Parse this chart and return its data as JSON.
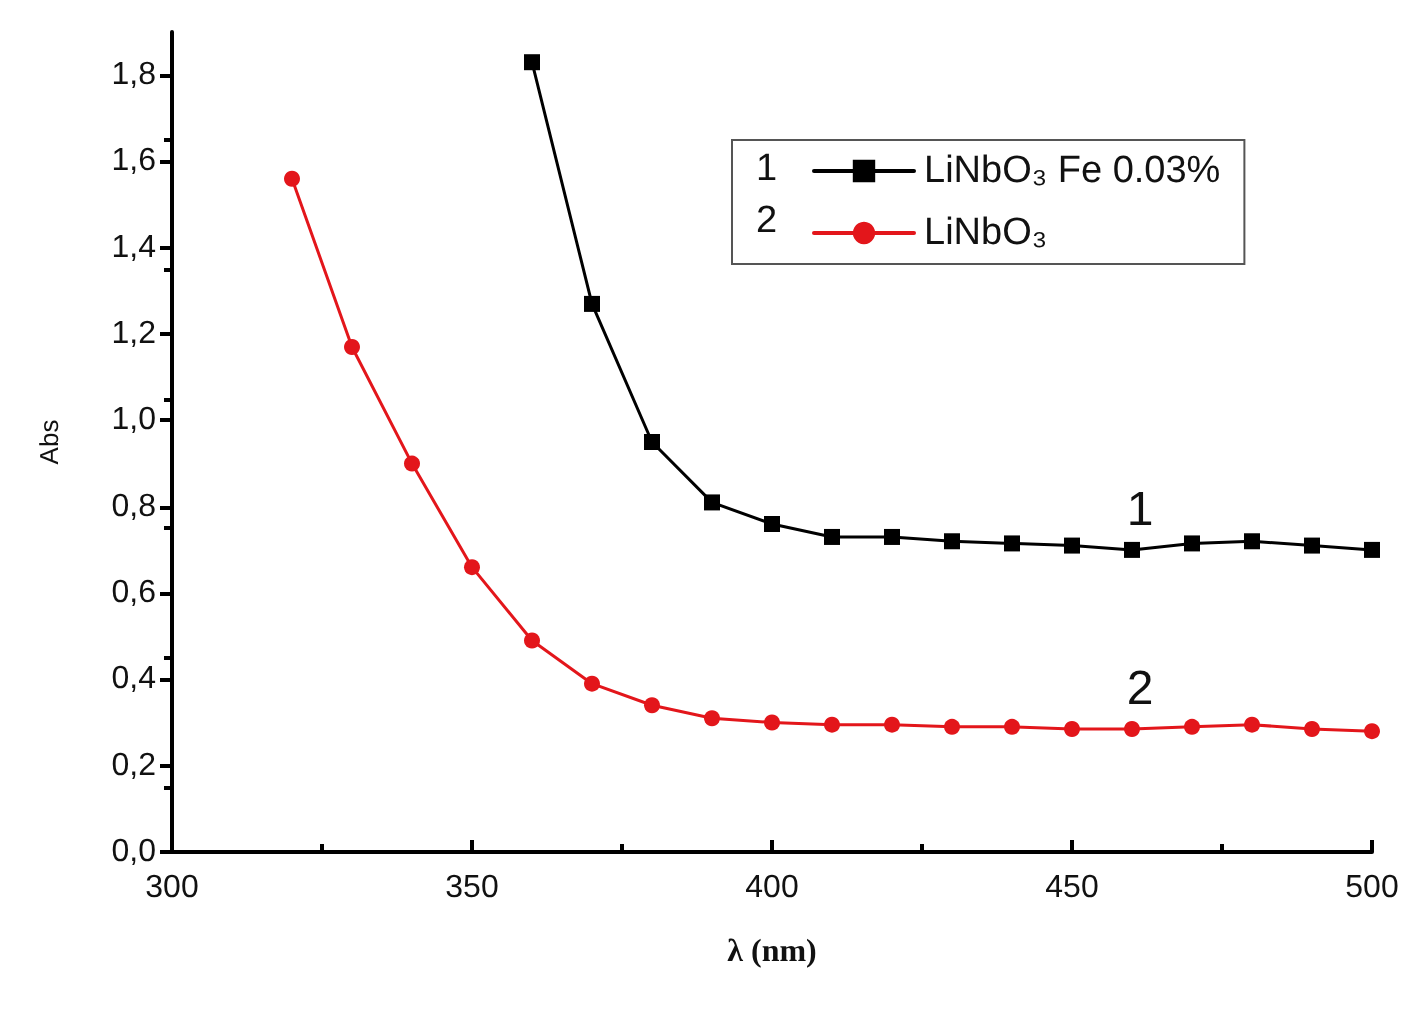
{
  "chart_data": {
    "type": "line",
    "xlabel": "λ (nm)",
    "ylabel": "Abs",
    "xlim": [
      300,
      500
    ],
    "xticks": [
      300,
      350,
      400,
      450,
      500
    ],
    "ylim": [
      0,
      1.9
    ],
    "yticks": [
      {
        "value": 0,
        "label": "0,0"
      },
      {
        "value": 0.2,
        "label": "0,2"
      },
      {
        "value": 0.4,
        "label": "0,4"
      },
      {
        "value": 0.6,
        "label": "0,6"
      },
      {
        "value": 0.8,
        "label": "0,8"
      },
      {
        "value": 1,
        "label": "1,0"
      },
      {
        "value": 1.2,
        "label": "1,2"
      },
      {
        "value": 1.4,
        "label": "1,4"
      },
      {
        "value": 1.6,
        "label": "1,6"
      },
      {
        "value": 1.8,
        "label": "1,8"
      }
    ],
    "series": [
      {
        "name": "LiNbO₃ Fe 0.03%",
        "color": "#000000",
        "marker": "square",
        "x": [
          360,
          370,
          380,
          390,
          400,
          410,
          420,
          430,
          440,
          450,
          460,
          470,
          480,
          490,
          500
        ],
        "values": [
          1.83,
          1.27,
          0.95,
          0.81,
          0.76,
          0.73,
          0.73,
          0.72,
          0.715,
          0.71,
          0.7,
          0.715,
          0.72,
          0.71,
          0.7
        ]
      },
      {
        "name": "LiNbO₃",
        "color": "#e3161b",
        "marker": "circle",
        "x": [
          320,
          330,
          340,
          350,
          360,
          370,
          380,
          390,
          400,
          410,
          420,
          430,
          440,
          450,
          460,
          470,
          480,
          490,
          500
        ],
        "values": [
          1.56,
          1.17,
          0.9,
          0.66,
          0.49,
          0.39,
          0.34,
          0.31,
          0.3,
          0.295,
          0.295,
          0.29,
          0.29,
          0.285,
          0.285,
          0.29,
          0.295,
          0.285,
          0.28
        ]
      }
    ],
    "annotations": [
      "1",
      "2"
    ],
    "grid": false,
    "legend": "top right",
    "line_style": "solid"
  }
}
